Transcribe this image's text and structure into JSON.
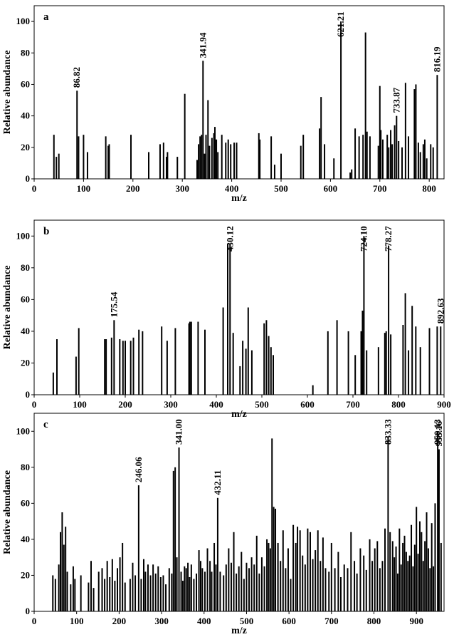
{
  "chart_data": [
    {
      "type": "bar",
      "panel": "a",
      "xlabel": "m/z",
      "ylabel": "Relative abundance",
      "xlim": [
        0,
        830
      ],
      "ylim": [
        0,
        110
      ],
      "xticks": [
        0,
        100,
        200,
        300,
        400,
        500,
        600,
        700,
        800
      ],
      "yticks": [
        0,
        20,
        40,
        60,
        80,
        100
      ],
      "peak_labels": [
        {
          "text": "86.82",
          "x": 86.82
        },
        {
          "text": "341.94",
          "x": 341.94
        },
        {
          "text": "621.21",
          "x": 621.21
        },
        {
          "text": "733.87",
          "x": 733.87
        },
        {
          "text": "816.19",
          "x": 816.19
        }
      ],
      "series": [
        {
          "x": [
            40,
            45,
            50,
            86.82,
            90,
            100,
            108,
            145,
            150,
            152,
            196,
            232,
            255,
            262,
            268,
            270,
            290,
            305,
            330,
            333,
            336,
            339,
            341.94,
            345,
            348,
            352,
            355,
            360,
            364,
            366,
            369,
            372,
            380,
            388,
            393,
            398,
            405,
            410,
            455,
            457,
            480,
            487,
            500,
            540,
            545,
            578,
            581,
            588,
            607,
            621.21,
            640,
            643,
            650,
            658,
            666,
            671,
            674,
            680,
            697,
            700,
            702,
            706,
            715,
            718,
            722,
            725,
            730,
            733.87,
            738,
            745,
            752,
            758,
            770,
            773,
            778,
            782,
            788,
            791,
            795,
            803,
            808,
            816.19
          ],
          "values": [
            28,
            14,
            16,
            56,
            27,
            28,
            17,
            27,
            21,
            22,
            28,
            17,
            22,
            23,
            14,
            17,
            14,
            54,
            12,
            22,
            27,
            28,
            75,
            16,
            28,
            50,
            21,
            26,
            29,
            33,
            25,
            17,
            28,
            23,
            25,
            22,
            23,
            23,
            29,
            25,
            27,
            9,
            16,
            21,
            28,
            32,
            52,
            22,
            13,
            100,
            4,
            6,
            32,
            27,
            28,
            93,
            30,
            27,
            21,
            59,
            31,
            25,
            28,
            20,
            31,
            22,
            34,
            40,
            24,
            20,
            61,
            27,
            57,
            60,
            23,
            17,
            22,
            25,
            13,
            22,
            20,
            66
          ]
        }
      ]
    },
    {
      "type": "bar",
      "panel": "b",
      "xlabel": "m/z",
      "ylabel": "Relative abundance",
      "xlim": [
        0,
        900
      ],
      "ylim": [
        0,
        110
      ],
      "xticks": [
        0,
        100,
        200,
        300,
        400,
        500,
        600,
        700,
        800,
        900
      ],
      "yticks": [
        0,
        20,
        40,
        60,
        80,
        100
      ],
      "peak_labels": [
        {
          "text": "175.54",
          "x": 175.54
        },
        {
          "text": "430.12",
          "x": 430.12
        },
        {
          "text": "724.10",
          "x": 724.1
        },
        {
          "text": "778.27",
          "x": 778.27
        },
        {
          "text": "892.63",
          "x": 892.63
        }
      ],
      "series": [
        {
          "x": [
            42,
            50,
            92,
            98,
            155,
            158,
            170,
            175.54,
            188,
            195,
            200,
            212,
            218,
            230,
            238,
            280,
            292,
            310,
            340,
            342,
            345,
            360,
            375,
            415,
            425,
            430.12,
            437,
            452,
            458,
            465,
            470,
            478,
            505,
            510,
            515,
            520,
            525,
            612,
            645,
            665,
            690,
            705,
            718,
            721,
            724.1,
            730,
            756,
            770,
            773,
            778.27,
            783,
            810,
            815,
            822,
            830,
            838,
            848,
            868,
            885,
            892.63
          ],
          "values": [
            14,
            35,
            24,
            42,
            35,
            35,
            36,
            47,
            35,
            34,
            34,
            34,
            36,
            41,
            40,
            43,
            34,
            42,
            45,
            46,
            46,
            46,
            41,
            55,
            95,
            95,
            39,
            18,
            34,
            29,
            55,
            28,
            45,
            47,
            37,
            30,
            25,
            6,
            40,
            47,
            40,
            25,
            40,
            53,
            100,
            28,
            30,
            39,
            40,
            94,
            38,
            44,
            64,
            28,
            56,
            43,
            30,
            42,
            43,
            43
          ]
        }
      ]
    },
    {
      "type": "bar",
      "panel": "c",
      "xlabel": "m/z",
      "ylabel": "Relative abundance",
      "xlim": [
        0,
        965
      ],
      "ylim": [
        0,
        110
      ],
      "xticks": [
        0,
        100,
        200,
        300,
        400,
        500,
        600,
        700,
        800,
        900
      ],
      "yticks": [
        0,
        20,
        40,
        60,
        80,
        100
      ],
      "peak_labels": [
        {
          "text": "246.06",
          "x": 246.06
        },
        {
          "text": "341.00",
          "x": 341
        },
        {
          "text": "432.11",
          "x": 432.11
        },
        {
          "text": "833.33",
          "x": 833.33
        },
        {
          "text": "950.13",
          "x": 950.13
        },
        {
          "text": "953.16",
          "x": 953.16
        }
      ],
      "series": [
        {
          "x": [
            44,
            50,
            58,
            62,
            66,
            70,
            74,
            78,
            86,
            92,
            96,
            110,
            128,
            134,
            140,
            152,
            160,
            166,
            172,
            178,
            184,
            190,
            196,
            202,
            208,
            214,
            226,
            232,
            238,
            246.06,
            252,
            258,
            262,
            268,
            274,
            280,
            286,
            292,
            298,
            304,
            310,
            318,
            324,
            328,
            332,
            336,
            341,
            346,
            350,
            354,
            358,
            362,
            366,
            370,
            376,
            382,
            388,
            392,
            396,
            402,
            408,
            414,
            418,
            424,
            428,
            432.11,
            438,
            446,
            452,
            458,
            464,
            470,
            476,
            482,
            488,
            494,
            500,
            506,
            512,
            518,
            524,
            530,
            536,
            542,
            548,
            552,
            556,
            560,
            564,
            568,
            574,
            580,
            586,
            592,
            598,
            604,
            610,
            616,
            620,
            626,
            632,
            638,
            644,
            650,
            656,
            662,
            668,
            674,
            680,
            686,
            694,
            700,
            708,
            716,
            722,
            730,
            738,
            746,
            754,
            760,
            768,
            776,
            782,
            790,
            796,
            802,
            808,
            814,
            820,
            826,
            833.33,
            838,
            844,
            848,
            852,
            856,
            860,
            864,
            868,
            872,
            876,
            880,
            884,
            888,
            892,
            896,
            900,
            904,
            908,
            912,
            916,
            920,
            924,
            928,
            932,
            936,
            940,
            944,
            950.13,
            953.16,
            958
          ],
          "values": [
            20,
            18,
            26,
            44,
            55,
            37,
            47,
            22,
            15,
            25,
            18,
            20,
            16,
            28,
            13,
            22,
            24,
            18,
            28,
            19,
            29,
            17,
            24,
            30,
            38,
            16,
            18,
            27,
            20,
            70,
            18,
            29,
            22,
            26,
            20,
            26,
            21,
            25,
            19,
            20,
            15,
            24,
            21,
            78,
            80,
            30,
            91,
            22,
            17,
            25,
            24,
            27,
            19,
            26,
            18,
            21,
            34,
            28,
            24,
            22,
            35,
            28,
            22,
            38,
            26,
            63,
            22,
            20,
            26,
            35,
            27,
            44,
            21,
            25,
            33,
            18,
            27,
            24,
            30,
            26,
            42,
            21,
            30,
            25,
            40,
            38,
            35,
            96,
            58,
            57,
            38,
            28,
            45,
            24,
            35,
            18,
            48,
            38,
            47,
            45,
            31,
            26,
            46,
            44,
            29,
            34,
            45,
            28,
            41,
            24,
            22,
            38,
            24,
            33,
            19,
            26,
            24,
            44,
            28,
            21,
            35,
            31,
            23,
            40,
            28,
            35,
            39,
            24,
            28,
            46,
            97,
            44,
            39,
            30,
            36,
            21,
            46,
            26,
            38,
            42,
            33,
            28,
            31,
            48,
            25,
            37,
            58,
            32,
            50,
            44,
            28,
            39,
            55,
            35,
            24,
            49,
            25,
            60,
            100,
            90,
            38
          ]
        }
      ]
    }
  ]
}
